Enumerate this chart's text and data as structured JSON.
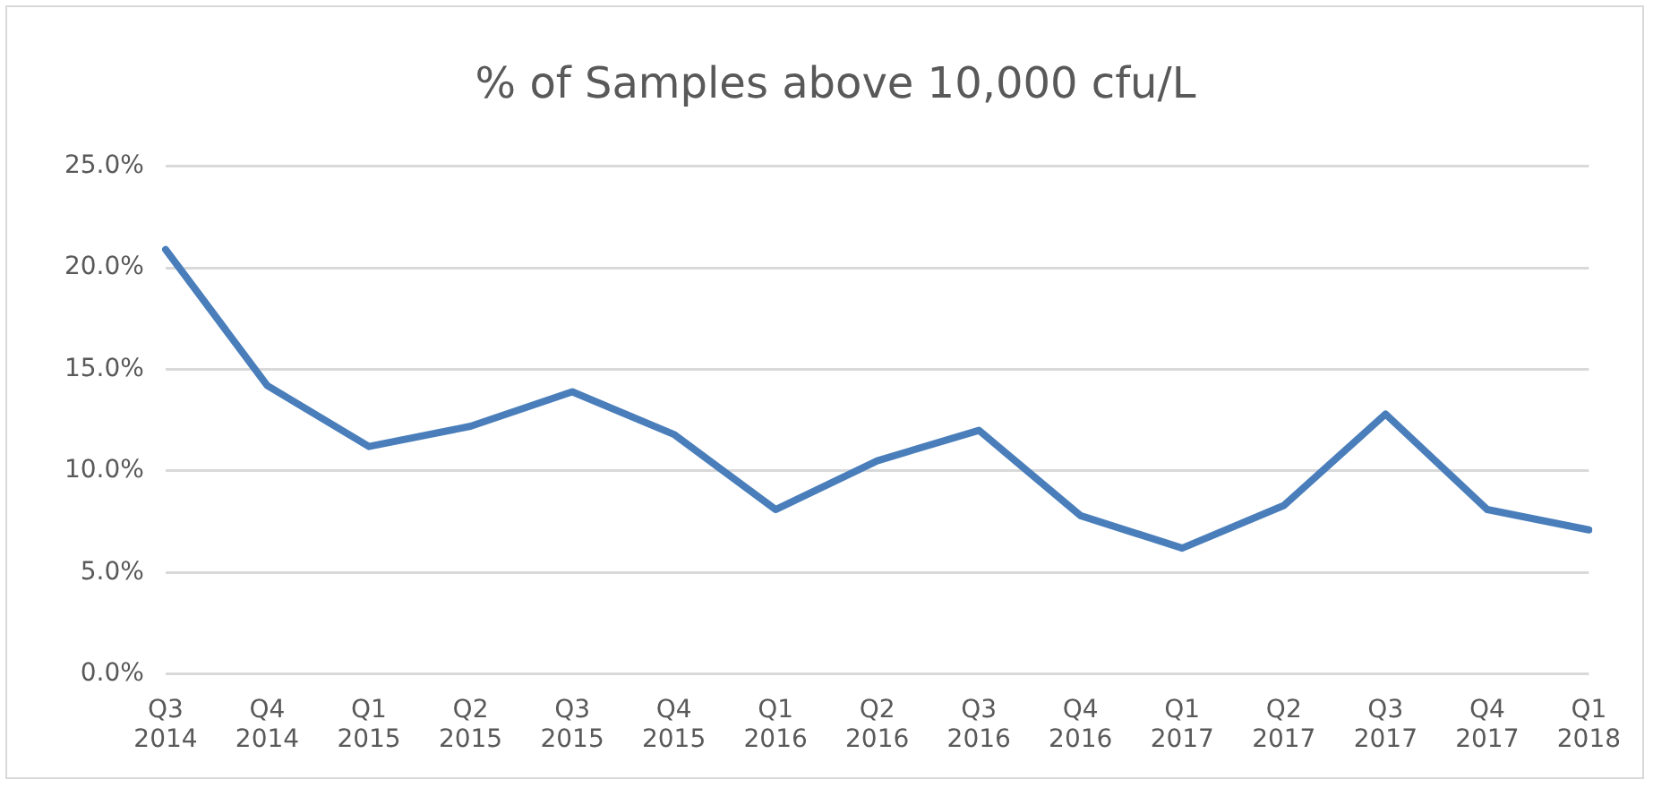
{
  "chart_data": {
    "type": "line",
    "title": "% of Samples above 10,000 cfu/L",
    "categories": [
      "Q3 2014",
      "Q4 2014",
      "Q1 2015",
      "Q2 2015",
      "Q3 2015",
      "Q4 2015",
      "Q1 2016",
      "Q2 2016",
      "Q3 2016",
      "Q4 2016",
      "Q1 2017",
      "Q2 2017",
      "Q3 2017",
      "Q4 2017",
      "Q1 2018"
    ],
    "series": [
      {
        "color": "#4a7ebb",
        "values": [
          20.9,
          14.2,
          11.2,
          12.2,
          13.9,
          11.8,
          8.1,
          10.5,
          12.0,
          7.8,
          6.2,
          8.3,
          12.8,
          8.1,
          7.1
        ]
      }
    ],
    "ylim": [
      0,
      25
    ],
    "yticks": [
      {
        "value": 0,
        "label": "0.0%"
      },
      {
        "value": 5,
        "label": "5.0%"
      },
      {
        "value": 10,
        "label": "10.0%"
      },
      {
        "value": 15,
        "label": "15.0%"
      },
      {
        "value": 20,
        "label": "20.0%"
      },
      {
        "value": 25,
        "label": "25.0%"
      }
    ],
    "grid": "y",
    "legend": false,
    "marker": "none",
    "line_style": "solid"
  }
}
